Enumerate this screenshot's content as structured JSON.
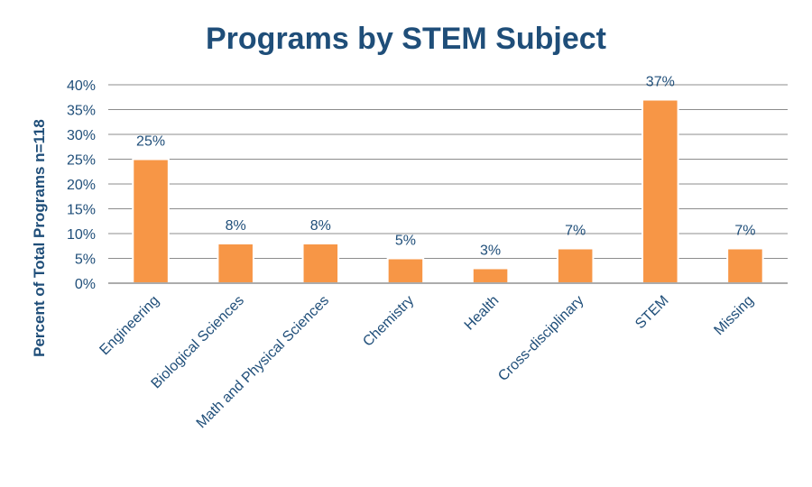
{
  "chart_data": {
    "type": "bar",
    "title": "Programs by STEM Subject",
    "ylabel": "Percent of Total Programs n=118",
    "xlabel": "",
    "categories": [
      "Engineering",
      "Biological Sciences",
      "Math and Physical Sciences",
      "Chemistry",
      "Health",
      "Cross-disciplinary",
      "STEM",
      "Missing"
    ],
    "values": [
      25,
      8,
      8,
      5,
      3,
      7,
      37,
      7
    ],
    "data_labels": [
      "25%",
      "8%",
      "8%",
      "5%",
      "3%",
      "7%",
      "37%",
      "7%"
    ],
    "y_ticks": [
      "0%",
      "5%",
      "10%",
      "15%",
      "20%",
      "25%",
      "30%",
      "35%",
      "40%"
    ],
    "ylim": [
      0,
      40
    ],
    "grid": true,
    "legend": "none",
    "bar_color": "#f79646",
    "text_color": "#1f4e79"
  }
}
